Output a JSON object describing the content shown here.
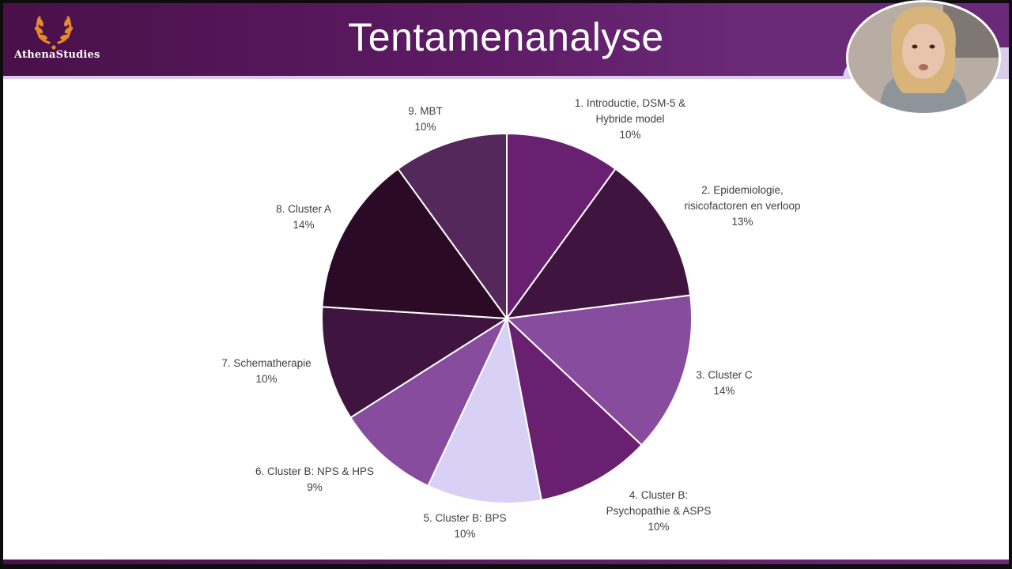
{
  "slide": {
    "title": "Tentamenanalyse",
    "logo_text": "AthenaStudies"
  },
  "colors": {
    "header_dark": "#4a1049",
    "header_light": "#6b2a78",
    "accent_lavender": "#d9cdeb",
    "label_text": "#404040"
  },
  "chart_data": {
    "type": "pie",
    "title": "",
    "start": "top",
    "direction": "clockwise",
    "slices": [
      {
        "label_lines": [
          "1. Introductie, DSM-5 &",
          "Hybride model"
        ],
        "pct_label": "10%",
        "value": 10,
        "color": "#6a2070"
      },
      {
        "label_lines": [
          "2. Epidemiologie,",
          "risicofactoren en verloop"
        ],
        "pct_label": "13%",
        "value": 13,
        "color": "#3f1540"
      },
      {
        "label_lines": [
          "3. Cluster C"
        ],
        "pct_label": "14%",
        "value": 14,
        "color": "#874c9e"
      },
      {
        "label_lines": [
          "4. Cluster B:",
          "Psychopathie & ASPS"
        ],
        "pct_label": "10%",
        "value": 10,
        "color": "#6a2070"
      },
      {
        "label_lines": [
          "5. Cluster B: BPS"
        ],
        "pct_label": "10%",
        "value": 10,
        "color": "#d9d0f6"
      },
      {
        "label_lines": [
          "6. Cluster B: NPS & HPS"
        ],
        "pct_label": "9%",
        "value": 9,
        "color": "#874c9e"
      },
      {
        "label_lines": [
          "7. Schematherapie"
        ],
        "pct_label": "10%",
        "value": 10,
        "color": "#3f1540"
      },
      {
        "label_lines": [
          "8. Cluster A"
        ],
        "pct_label": "14%",
        "value": 14,
        "color": "#2b0a25"
      },
      {
        "label_lines": [
          "9. MBT"
        ],
        "pct_label": "10%",
        "value": 10,
        "color": "#55285b"
      }
    ]
  }
}
